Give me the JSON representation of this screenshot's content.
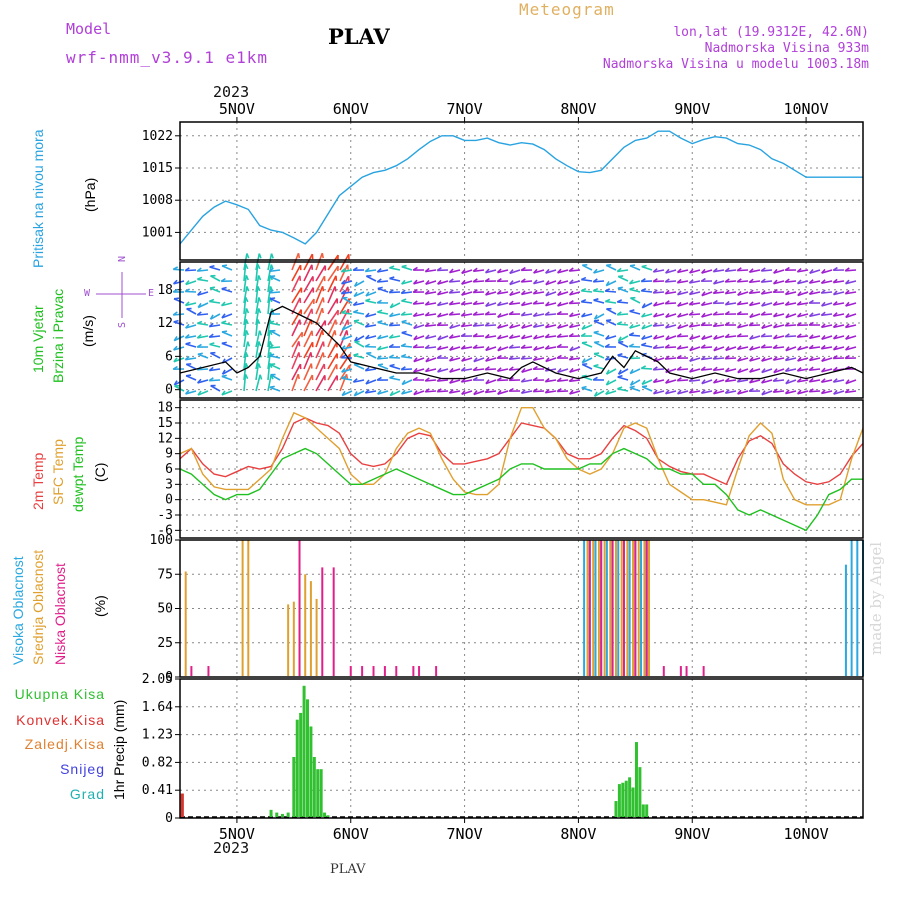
{
  "header": {
    "model_label": "Model",
    "model_name": "wrf-nmm_v3.9.1  e1km",
    "title": "PLAV",
    "meteogram": "Meteogram",
    "lonlat": "lon,lat (19.9312E, 42.6N)",
    "elevation": "Nadmorska Visina 933m",
    "model_elevation": "Nadmorska Visina u modelu 1003.18m",
    "year_top": "2023",
    "year_bottom": "2023",
    "footer_station": "PLAV",
    "credit": "made by Angel"
  },
  "colors": {
    "pressure": "#29a3e0",
    "wind_label": "#20c020",
    "temp_2m": "#e84040",
    "sfc_temp": "#e0a030",
    "dewpt": "#20c020",
    "high_cloud": "#2aa8e0",
    "mid_cloud": "#e0a030",
    "low_cloud": "#e0208a",
    "total_precip": "#30c030",
    "conv_precip": "#e03030",
    "frozen": "#e08030",
    "snow": "#4040e0",
    "hail": "#20b0b0",
    "compass": "#a050d0"
  },
  "x_axis": {
    "day_labels": [
      "5NOV",
      "6NOV",
      "7NOV",
      "8NOV",
      "9NOV",
      "10NOV"
    ],
    "day_positions": [
      5,
      6,
      7,
      8,
      9,
      10
    ],
    "range": [
      4.5,
      10.5
    ]
  },
  "panels": {
    "pressure": {
      "label": "Pritisak na nivou mora",
      "unit": "(hPa)",
      "ticks": [
        "1001",
        "1008",
        "1015",
        "1022"
      ]
    },
    "wind": {
      "label_1": "10m Vjetar",
      "label_2": "Brzina i Pravac",
      "unit": "(m/s)",
      "ticks": [
        "0",
        "6",
        "12",
        "18"
      ],
      "compass_n": "N",
      "compass_s": "S",
      "compass_w": "W",
      "compass_e": "E"
    },
    "temperature": {
      "label_1": "2m Temp",
      "label_2": "SFC Temp",
      "label_3": "dewpt Temp",
      "unit": "(C)",
      "ticks": [
        "-6",
        "-3",
        "0",
        "3",
        "6",
        "9",
        "12",
        "15",
        "18"
      ]
    },
    "clouds": {
      "label_high": "Visoka Oblacnost",
      "label_mid": "Srednja Oblacnost",
      "label_low": "Niska Oblacnost",
      "unit": "(%)",
      "ticks": [
        "0",
        "25",
        "50",
        "75",
        "100"
      ]
    },
    "precip": {
      "legend": [
        "Ukupna Kisa",
        "Konvek.Kisa",
        "Zaledj.Kisa",
        "Snijeg",
        "Grad"
      ],
      "unit": "1hr Precip (mm)",
      "ticks": [
        "0",
        "0.41",
        "0.82",
        "1.23",
        "1.64",
        "2.05"
      ]
    }
  },
  "chart_data": [
    {
      "type": "line",
      "name": "pressure",
      "ylim": [
        995,
        1025
      ],
      "series": [
        {
          "name": "Pritisak na nivou mora",
          "x": [
            4.5,
            4.6,
            4.7,
            4.8,
            4.9,
            5.0,
            5.1,
            5.2,
            5.3,
            5.4,
            5.5,
            5.6,
            5.7,
            5.8,
            5.9,
            6.0,
            6.1,
            6.2,
            6.3,
            6.4,
            6.5,
            6.6,
            6.7,
            6.8,
            6.9,
            7.0,
            7.1,
            7.2,
            7.3,
            7.4,
            7.5,
            7.6,
            7.7,
            7.8,
            7.9,
            8.0,
            8.1,
            8.2,
            8.3,
            8.4,
            8.5,
            8.6,
            8.7,
            8.8,
            8.9,
            9.0,
            9.1,
            9.2,
            9.3,
            9.4,
            9.5,
            9.6,
            9.7,
            9.8,
            9.9,
            10.0,
            10.1,
            10.2,
            10.3,
            10.4,
            10.5
          ],
          "y": [
            998.5,
            1001.5,
            1004.5,
            1006.5,
            1007.8,
            1007.0,
            1006.0,
            1002.5,
            1001.5,
            1001.0,
            999.8,
            998.5,
            1001.0,
            1005.0,
            1009.0,
            1011.0,
            1013.0,
            1014.0,
            1014.5,
            1015.5,
            1017.0,
            1019.0,
            1020.8,
            1022.0,
            1022.0,
            1021.0,
            1021.0,
            1021.5,
            1020.5,
            1020.0,
            1020.5,
            1020.2,
            1019.0,
            1017.0,
            1015.5,
            1014.2,
            1014.0,
            1014.5,
            1017.0,
            1019.5,
            1021.0,
            1021.5,
            1023.0,
            1023.0,
            1021.5,
            1020.3,
            1021.2,
            1021.8,
            1021.5,
            1020.3,
            1020.0,
            1019.0,
            1017.0,
            1016.0,
            1014.5,
            1013.0,
            1013.0,
            1013.0,
            1013.0,
            1013.0,
            1013.0
          ]
        }
      ]
    },
    {
      "type": "line",
      "name": "wind",
      "ylim": [
        -1.5,
        23
      ],
      "series": [
        {
          "name": "speed",
          "x": [
            4.5,
            4.7,
            4.9,
            5.0,
            5.1,
            5.2,
            5.3,
            5.4,
            5.5,
            5.6,
            5.7,
            5.8,
            5.9,
            6.0,
            6.2,
            6.4,
            6.6,
            6.8,
            7.0,
            7.2,
            7.4,
            7.5,
            7.6,
            7.8,
            8.0,
            8.2,
            8.3,
            8.4,
            8.5,
            8.6,
            8.7,
            8.8,
            9.0,
            9.2,
            9.4,
            9.6,
            9.8,
            10.0,
            10.2,
            10.4,
            10.5
          ],
          "y": [
            3,
            4,
            5,
            3,
            4,
            6,
            14,
            15,
            14,
            13,
            12,
            10,
            8,
            5,
            4,
            3,
            3,
            2,
            2,
            3,
            2,
            4,
            5,
            3,
            2,
            3,
            6,
            4,
            7,
            6,
            5,
            3,
            2,
            3,
            2,
            2,
            3,
            2,
            3,
            4,
            3
          ]
        }
      ]
    },
    {
      "type": "line",
      "name": "temperature",
      "ylim": [
        -7.5,
        19.5
      ],
      "series": [
        {
          "name": "2m Temp",
          "x": [
            4.5,
            4.6,
            4.7,
            4.8,
            4.9,
            5.0,
            5.1,
            5.2,
            5.3,
            5.4,
            5.5,
            5.6,
            5.7,
            5.8,
            5.9,
            6.0,
            6.1,
            6.2,
            6.3,
            6.4,
            6.5,
            6.6,
            6.7,
            6.8,
            6.9,
            7.0,
            7.1,
            7.2,
            7.3,
            7.4,
            7.5,
            7.6,
            7.7,
            7.8,
            7.9,
            8.0,
            8.1,
            8.2,
            8.3,
            8.4,
            8.5,
            8.6,
            8.7,
            8.8,
            8.9,
            9.0,
            9.1,
            9.2,
            9.3,
            9.4,
            9.5,
            9.6,
            9.7,
            9.8,
            9.9,
            10.0,
            10.1,
            10.2,
            10.3,
            10.4,
            10.5
          ],
          "y": [
            8,
            10,
            7,
            5,
            4.5,
            5.5,
            6.5,
            6,
            6.5,
            10,
            15,
            16,
            15,
            14.5,
            13,
            9,
            7,
            6.5,
            7,
            9,
            12,
            13,
            12.5,
            9,
            7,
            7,
            7.5,
            8,
            9,
            12,
            15,
            14.5,
            14,
            12,
            9,
            8,
            8,
            9,
            12,
            14.5,
            13.5,
            12,
            8,
            6.5,
            5.5,
            5,
            5,
            4,
            3,
            8,
            11.5,
            12.5,
            11,
            7,
            5,
            3.5,
            3,
            3.5,
            5,
            8.5,
            11
          ]
        },
        {
          "name": "SFC Temp",
          "x": [
            4.5,
            4.6,
            4.7,
            4.8,
            4.9,
            5.0,
            5.1,
            5.2,
            5.3,
            5.4,
            5.5,
            5.6,
            5.7,
            5.8,
            5.9,
            6.0,
            6.1,
            6.2,
            6.3,
            6.4,
            6.5,
            6.6,
            6.7,
            6.8,
            6.9,
            7.0,
            7.1,
            7.2,
            7.3,
            7.4,
            7.5,
            7.6,
            7.7,
            7.8,
            7.9,
            8.0,
            8.1,
            8.2,
            8.3,
            8.4,
            8.5,
            8.6,
            8.7,
            8.8,
            8.9,
            9.0,
            9.1,
            9.2,
            9.3,
            9.4,
            9.5,
            9.6,
            9.7,
            9.8,
            9.9,
            10.0,
            10.1,
            10.2,
            10.3,
            10.4,
            10.5
          ],
          "y": [
            9,
            10,
            5,
            2.5,
            2,
            2,
            2,
            4,
            6,
            12,
            17,
            16,
            14,
            12,
            10,
            5,
            3,
            3,
            5,
            10,
            13,
            14,
            13,
            8,
            4,
            1.5,
            1,
            1,
            3,
            12,
            18,
            18,
            14,
            12,
            8,
            6,
            5,
            6,
            9,
            14,
            15,
            14,
            8,
            3,
            1.5,
            0,
            0,
            -0.5,
            -1,
            6,
            12.5,
            15,
            13,
            4,
            0,
            -1,
            -1,
            -1,
            0,
            8,
            14
          ]
        },
        {
          "name": "dewpt Temp",
          "x": [
            4.5,
            4.6,
            4.7,
            4.8,
            4.9,
            5.0,
            5.1,
            5.2,
            5.3,
            5.4,
            5.5,
            5.6,
            5.7,
            5.8,
            5.9,
            6.0,
            6.1,
            6.2,
            6.3,
            6.4,
            6.5,
            6.6,
            6.7,
            6.8,
            6.9,
            7.0,
            7.1,
            7.2,
            7.3,
            7.4,
            7.5,
            7.6,
            7.7,
            7.8,
            7.9,
            8.0,
            8.1,
            8.2,
            8.3,
            8.4,
            8.5,
            8.6,
            8.7,
            8.8,
            8.9,
            9.0,
            9.1,
            9.2,
            9.3,
            9.4,
            9.5,
            9.6,
            9.7,
            9.8,
            9.9,
            10.0,
            10.1,
            10.2,
            10.3,
            10.4,
            10.5
          ],
          "y": [
            6,
            5,
            3,
            1,
            0,
            1,
            1,
            2,
            5,
            8,
            9,
            10,
            9,
            7,
            5,
            3,
            3,
            4,
            5,
            6,
            5,
            4,
            3,
            2,
            1,
            1,
            2,
            3,
            4,
            6,
            7,
            7,
            6,
            6,
            6,
            6,
            7,
            7,
            9,
            10,
            9,
            8,
            6,
            6,
            5,
            5,
            3,
            3,
            1,
            -2,
            -3,
            -2,
            -3,
            -4,
            -5,
            -6,
            -3,
            1,
            2,
            4,
            4
          ]
        }
      ]
    },
    {
      "type": "bar",
      "name": "clouds",
      "ylim": [
        0,
        100
      ],
      "series": [
        {
          "name": "Visoka Oblacnost",
          "x": [
            8.05,
            8.1,
            8.15,
            8.2,
            8.25,
            8.3,
            8.35,
            8.4,
            8.45,
            8.5,
            8.55,
            8.6,
            10.35,
            10.4,
            10.45,
            10.5
          ],
          "y": [
            100,
            100,
            100,
            100,
            100,
            100,
            100,
            100,
            100,
            100,
            100,
            100,
            82,
            100,
            100,
            100
          ]
        },
        {
          "name": "Srednja Oblacnost",
          "x": [
            4.55,
            5.05,
            5.1,
            5.45,
            5.5,
            5.55,
            5.6,
            5.65,
            5.7,
            8.08,
            8.13,
            8.18,
            8.23,
            8.28,
            8.33,
            8.38,
            8.43,
            8.48,
            8.53,
            8.58,
            8.62
          ],
          "y": [
            77,
            100,
            100,
            53,
            55,
            65,
            75,
            70,
            57,
            100,
            100,
            100,
            100,
            100,
            100,
            100,
            100,
            100,
            100,
            100,
            100
          ]
        },
        {
          "name": "Niska Oblacnost",
          "x": [
            4.6,
            4.75,
            5.55,
            5.75,
            5.85,
            6.0,
            6.1,
            6.2,
            6.3,
            6.4,
            6.55,
            6.6,
            6.75,
            8.1,
            8.2,
            8.3,
            8.4,
            8.5,
            8.6,
            8.75,
            8.9,
            8.95,
            9.1
          ],
          "y": [
            8,
            8,
            100,
            80,
            80,
            8,
            8,
            8,
            8,
            8,
            8,
            8,
            8,
            100,
            100,
            100,
            100,
            100,
            100,
            8,
            8,
            8,
            8
          ]
        }
      ]
    },
    {
      "type": "bar",
      "name": "precip",
      "ylim": [
        0,
        2.05
      ],
      "series": [
        {
          "name": "Ukupna Kisa",
          "x": [
            4.52,
            5.3,
            5.35,
            5.4,
            5.45,
            5.5,
            5.53,
            5.56,
            5.59,
            5.62,
            5.65,
            5.68,
            5.71,
            5.74,
            5.77,
            5.8,
            8.33,
            8.36,
            8.39,
            8.42,
            8.45,
            8.48,
            8.51,
            8.54,
            8.57,
            8.6
          ],
          "y": [
            0.36,
            0.12,
            0.08,
            0.06,
            0.08,
            0.9,
            1.45,
            1.55,
            1.95,
            1.75,
            1.35,
            0.9,
            0.72,
            0.72,
            0.08,
            0.04,
            0.25,
            0.5,
            0.52,
            0.55,
            0.6,
            0.45,
            1.12,
            0.75,
            0.2,
            0.2
          ]
        },
        {
          "name": "Konvek.Kisa",
          "x": [
            4.52
          ],
          "y": [
            0.36
          ]
        }
      ]
    }
  ]
}
